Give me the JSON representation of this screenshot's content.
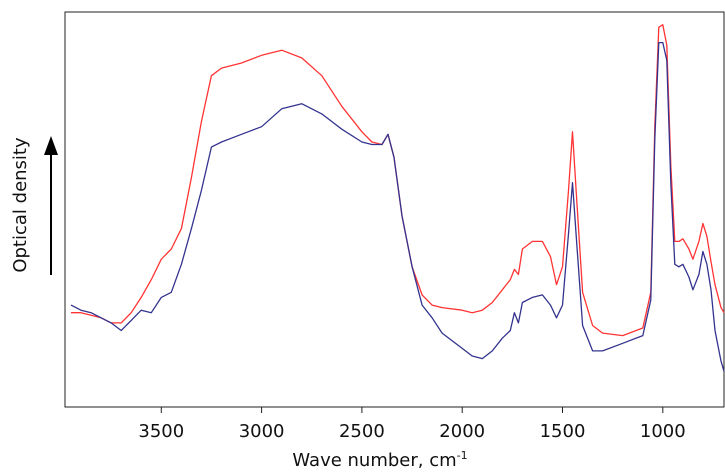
{
  "chart_data": {
    "type": "line",
    "title": "",
    "xlabel": "Wave number, cm",
    "xlabel_superscript": "-1",
    "ylabel": "Optical density",
    "x_reversed": true,
    "xlim": [
      3980,
      690
    ],
    "ylim": [
      -0.1,
      1.45
    ],
    "x_ticks": [
      3500,
      3000,
      2500,
      2000,
      1500,
      1000
    ],
    "x_tick_labels": [
      "3500",
      "3000",
      "2500",
      "2000",
      "1500",
      "1000"
    ],
    "y_ticks_shown": false,
    "grid": false,
    "legend": "none",
    "y_arrow": true,
    "series": [
      {
        "color": "#ff3333",
        "points": [
          [
            3950,
            0.27
          ],
          [
            3900,
            0.27
          ],
          [
            3850,
            0.26
          ],
          [
            3800,
            0.25
          ],
          [
            3750,
            0.23
          ],
          [
            3700,
            0.23
          ],
          [
            3650,
            0.27
          ],
          [
            3600,
            0.33
          ],
          [
            3550,
            0.4
          ],
          [
            3500,
            0.48
          ],
          [
            3450,
            0.52
          ],
          [
            3400,
            0.6
          ],
          [
            3350,
            0.8
          ],
          [
            3300,
            1.02
          ],
          [
            3250,
            1.2
          ],
          [
            3200,
            1.23
          ],
          [
            3100,
            1.25
          ],
          [
            3000,
            1.28
          ],
          [
            2900,
            1.3
          ],
          [
            2800,
            1.27
          ],
          [
            2700,
            1.2
          ],
          [
            2600,
            1.08
          ],
          [
            2500,
            0.98
          ],
          [
            2450,
            0.94
          ],
          [
            2400,
            0.93
          ],
          [
            2370,
            0.97
          ],
          [
            2340,
            0.88
          ],
          [
            2300,
            0.65
          ],
          [
            2250,
            0.45
          ],
          [
            2200,
            0.34
          ],
          [
            2150,
            0.3
          ],
          [
            2100,
            0.29
          ],
          [
            2000,
            0.28
          ],
          [
            1950,
            0.27
          ],
          [
            1900,
            0.28
          ],
          [
            1850,
            0.31
          ],
          [
            1800,
            0.36
          ],
          [
            1760,
            0.4
          ],
          [
            1740,
            0.44
          ],
          [
            1720,
            0.42
          ],
          [
            1700,
            0.52
          ],
          [
            1650,
            0.55
          ],
          [
            1600,
            0.55
          ],
          [
            1560,
            0.49
          ],
          [
            1530,
            0.38
          ],
          [
            1500,
            0.45
          ],
          [
            1470,
            0.75
          ],
          [
            1450,
            0.98
          ],
          [
            1430,
            0.72
          ],
          [
            1400,
            0.35
          ],
          [
            1350,
            0.22
          ],
          [
            1300,
            0.19
          ],
          [
            1200,
            0.18
          ],
          [
            1100,
            0.21
          ],
          [
            1060,
            0.35
          ],
          [
            1040,
            1.0
          ],
          [
            1020,
            1.39
          ],
          [
            1000,
            1.4
          ],
          [
            980,
            1.32
          ],
          [
            960,
            0.85
          ],
          [
            940,
            0.55
          ],
          [
            920,
            0.55
          ],
          [
            900,
            0.56
          ],
          [
            870,
            0.52
          ],
          [
            850,
            0.48
          ],
          [
            820,
            0.55
          ],
          [
            800,
            0.62
          ],
          [
            780,
            0.57
          ],
          [
            760,
            0.47
          ],
          [
            740,
            0.38
          ],
          [
            710,
            0.29
          ],
          [
            695,
            0.27
          ]
        ]
      },
      {
        "color": "#33338f",
        "points": [
          [
            3950,
            0.3
          ],
          [
            3900,
            0.28
          ],
          [
            3850,
            0.27
          ],
          [
            3800,
            0.25
          ],
          [
            3750,
            0.23
          ],
          [
            3700,
            0.2
          ],
          [
            3650,
            0.24
          ],
          [
            3600,
            0.28
          ],
          [
            3550,
            0.27
          ],
          [
            3500,
            0.33
          ],
          [
            3450,
            0.35
          ],
          [
            3400,
            0.46
          ],
          [
            3350,
            0.6
          ],
          [
            3300,
            0.75
          ],
          [
            3250,
            0.92
          ],
          [
            3200,
            0.94
          ],
          [
            3100,
            0.97
          ],
          [
            3000,
            1.0
          ],
          [
            2900,
            1.07
          ],
          [
            2800,
            1.09
          ],
          [
            2700,
            1.05
          ],
          [
            2600,
            0.99
          ],
          [
            2500,
            0.94
          ],
          [
            2450,
            0.93
          ],
          [
            2400,
            0.93
          ],
          [
            2370,
            0.97
          ],
          [
            2340,
            0.88
          ],
          [
            2300,
            0.65
          ],
          [
            2250,
            0.45
          ],
          [
            2200,
            0.3
          ],
          [
            2150,
            0.25
          ],
          [
            2100,
            0.19
          ],
          [
            2000,
            0.13
          ],
          [
            1950,
            0.1
          ],
          [
            1900,
            0.09
          ],
          [
            1850,
            0.12
          ],
          [
            1800,
            0.17
          ],
          [
            1760,
            0.2
          ],
          [
            1740,
            0.27
          ],
          [
            1720,
            0.23
          ],
          [
            1700,
            0.31
          ],
          [
            1650,
            0.33
          ],
          [
            1600,
            0.34
          ],
          [
            1560,
            0.3
          ],
          [
            1530,
            0.25
          ],
          [
            1500,
            0.3
          ],
          [
            1470,
            0.58
          ],
          [
            1450,
            0.78
          ],
          [
            1430,
            0.55
          ],
          [
            1400,
            0.22
          ],
          [
            1350,
            0.12
          ],
          [
            1300,
            0.12
          ],
          [
            1200,
            0.15
          ],
          [
            1100,
            0.18
          ],
          [
            1060,
            0.32
          ],
          [
            1040,
            0.95
          ],
          [
            1020,
            1.33
          ],
          [
            1000,
            1.33
          ],
          [
            980,
            1.26
          ],
          [
            960,
            0.78
          ],
          [
            940,
            0.46
          ],
          [
            920,
            0.45
          ],
          [
            900,
            0.46
          ],
          [
            870,
            0.41
          ],
          [
            850,
            0.36
          ],
          [
            820,
            0.42
          ],
          [
            800,
            0.51
          ],
          [
            780,
            0.46
          ],
          [
            760,
            0.36
          ],
          [
            740,
            0.2
          ],
          [
            710,
            0.08
          ],
          [
            695,
            0.04
          ]
        ]
      }
    ]
  }
}
